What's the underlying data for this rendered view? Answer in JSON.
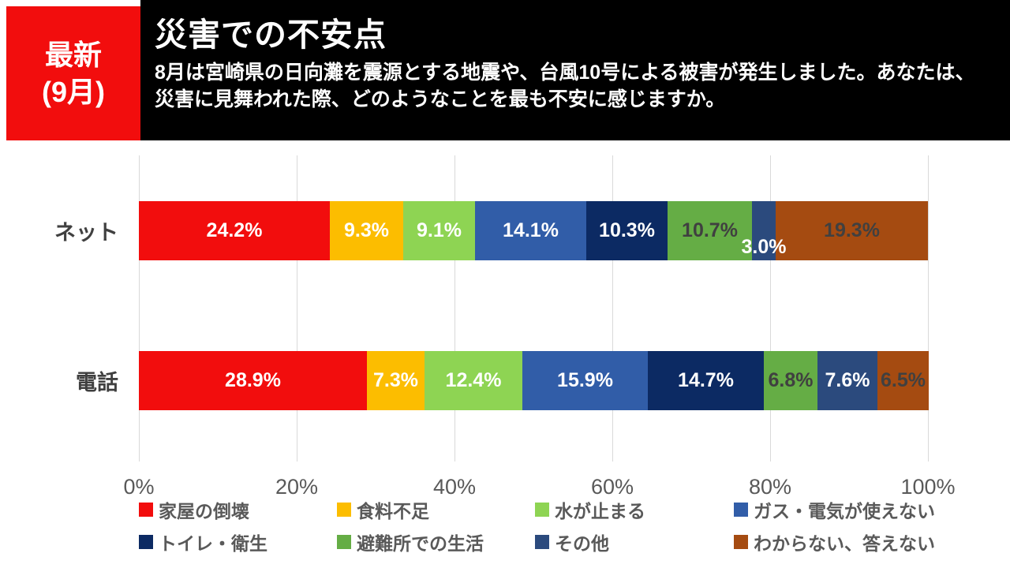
{
  "header": {
    "badge_line1": "最新",
    "badge_line2": "(9月)",
    "badge_color": "#f20d0d",
    "title": "災害での不安点",
    "subtitle": "8月は宮崎県の日向灘を震源とする地震や、台風10号による被害が発生しました。あなたは、災害に見舞われた際、どのようなことを最も不安に感じますか。"
  },
  "chart_data": {
    "type": "bar",
    "orientation": "horizontal-stacked",
    "categories": [
      "ネット",
      "電話"
    ],
    "series": [
      {
        "name": "家屋の倒壊",
        "color": "#f20d0d",
        "label_color": "#ffffff",
        "values": [
          24.2,
          28.9
        ]
      },
      {
        "name": "食料不足",
        "color": "#fcbd00",
        "label_color": "#ffffff",
        "values": [
          9.3,
          7.3
        ]
      },
      {
        "name": "水が止まる",
        "color": "#8ed453",
        "label_color": "#ffffff",
        "values": [
          9.1,
          12.4
        ]
      },
      {
        "name": "ガス・電気が使えない",
        "color": "#315da8",
        "label_color": "#ffffff",
        "values": [
          14.1,
          15.9
        ]
      },
      {
        "name": "トイレ・衛生",
        "color": "#0c2a63",
        "label_color": "#ffffff",
        "values": [
          10.3,
          14.7
        ]
      },
      {
        "name": "避難所での生活",
        "color": "#65ad45",
        "label_color": "#404040",
        "values": [
          10.7,
          6.8
        ]
      },
      {
        "name": "その他",
        "color": "#2b4a7d",
        "label_color": "#ffffff",
        "values": [
          3.0,
          7.6
        ]
      },
      {
        "name": "わからない、答えない",
        "color": "#a54b11",
        "label_color": "#404040",
        "values": [
          19.3,
          6.5
        ]
      }
    ],
    "ticks": [
      "0%",
      "20%",
      "40%",
      "60%",
      "80%",
      "100%"
    ],
    "xlim": [
      0,
      100
    ],
    "grid": true,
    "legend_position": "bottom",
    "value_label_format": "one-decimal-percent"
  }
}
